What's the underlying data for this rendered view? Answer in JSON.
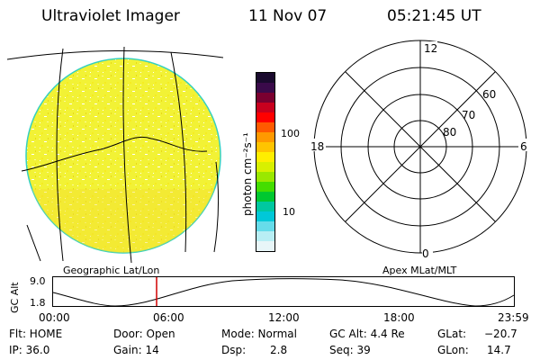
{
  "header": {
    "instrument": "Ultraviolet Imager",
    "date": "11 Nov 07",
    "time": "05:21:45 UT"
  },
  "colorbar": {
    "unit_label": "photon cm⁻²s⁻¹",
    "tick_100": "100",
    "tick_10": "10",
    "colors": [
      "#1a0a2e",
      "#3a0a4a",
      "#7a0030",
      "#c8001e",
      "#ff0000",
      "#ff5a00",
      "#ff9900",
      "#ffc400",
      "#ffee00",
      "#d8f000",
      "#9ae800",
      "#44dd00",
      "#00c830",
      "#00c8a0",
      "#00c8d8",
      "#66dcea",
      "#b8eef4",
      "#e8f6f8"
    ]
  },
  "polar": {
    "label_12": "12",
    "label_18": "18",
    "label_6": "6",
    "label_0": "0",
    "label_60": "60",
    "label_70": "70",
    "label_80": "80"
  },
  "labels": {
    "geo": "Geographic Lat/Lon",
    "apex": "Apex MLat/MLT"
  },
  "altplot": {
    "axis_label": "GC Alt",
    "y_top": "9.0",
    "y_bottom": "1.8",
    "x_ticks": [
      "00:00",
      "06:00",
      "12:00",
      "18:00",
      "23:59"
    ]
  },
  "info": {
    "flt": "Flt: HOME",
    "ip": "IP: 36.0",
    "door": "Door: Open",
    "gain": "Gain: 14",
    "mode": "Mode: Normal",
    "dsp_label": "Dsp:",
    "dsp_value": "2.8",
    "gcalt": "GC Alt: 4.4 Re",
    "seq": "Seq: 39",
    "glat_label": "GLat:",
    "glat_value": "−20.7",
    "glon_label": "GLon:",
    "glon_value": "14.7"
  }
}
